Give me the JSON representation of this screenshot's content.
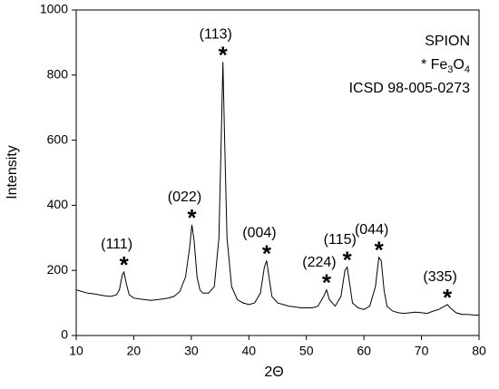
{
  "chart_data": {
    "type": "line",
    "x_label": "2Θ",
    "y_label": "Intensity",
    "xlim": [
      10,
      80
    ],
    "ylim": [
      0,
      1000
    ],
    "xticks": [
      10,
      20,
      30,
      40,
      50,
      60,
      70,
      80
    ],
    "yticks": [
      0,
      200,
      400,
      600,
      800,
      1000
    ],
    "legend_text": {
      "title": "SPION",
      "formula_parts": [
        "* Fe",
        "3",
        "O",
        "4"
      ],
      "reference": "ICSD 98-005-0273"
    },
    "series": [
      {
        "color": "#000000",
        "x": [
          10,
          11,
          12,
          13,
          14,
          15,
          16,
          17,
          17.5,
          18,
          18.3,
          18.7,
          19.2,
          20,
          21,
          22,
          23,
          24,
          25,
          26,
          27,
          28,
          29,
          29.7,
          30.1,
          30.5,
          31,
          31.5,
          32,
          33,
          34,
          34.8,
          35.2,
          35.5,
          35.8,
          36.2,
          37,
          38,
          39,
          40,
          41,
          42,
          42.7,
          43.1,
          43.5,
          44,
          45,
          46,
          47,
          48,
          49,
          50,
          51,
          52,
          53,
          53.5,
          54,
          55,
          56,
          56.7,
          57.1,
          57.6,
          58,
          59,
          60,
          61,
          62,
          62.6,
          63,
          63.5,
          64,
          65,
          66,
          67,
          68,
          69,
          70,
          71,
          72,
          73,
          74,
          74.5,
          75,
          76,
          77,
          78,
          79,
          80
        ],
        "values": [
          140,
          135,
          130,
          128,
          125,
          122,
          120,
          125,
          140,
          185,
          195,
          160,
          125,
          115,
          112,
          110,
          108,
          110,
          112,
          115,
          120,
          135,
          180,
          270,
          340,
          290,
          180,
          140,
          130,
          130,
          150,
          300,
          600,
          840,
          600,
          300,
          150,
          110,
          100,
          95,
          100,
          130,
          210,
          230,
          180,
          120,
          100,
          95,
          90,
          88,
          85,
          85,
          85,
          90,
          120,
          140,
          110,
          90,
          120,
          200,
          210,
          150,
          100,
          85,
          80,
          90,
          150,
          240,
          230,
          140,
          90,
          75,
          70,
          68,
          70,
          72,
          70,
          68,
          75,
          80,
          90,
          95,
          85,
          70,
          65,
          65,
          63,
          62
        ]
      }
    ],
    "annotations": [
      {
        "label": "(111)",
        "marker": "*",
        "x": 18.3
      },
      {
        "label": "(022)",
        "marker": "*",
        "x": 30.1
      },
      {
        "label": "(113)",
        "marker": "*",
        "x": 35.5
      },
      {
        "label": "(004)",
        "marker": "*",
        "x": 43.1
      },
      {
        "label": "(224)",
        "marker": "*",
        "x": 53.5
      },
      {
        "label": "(115)",
        "marker": "*",
        "x": 57.1
      },
      {
        "label": "(044)",
        "marker": "*",
        "x": 62.6
      },
      {
        "label": "(335)",
        "marker": "*",
        "x": 74.5
      }
    ]
  }
}
